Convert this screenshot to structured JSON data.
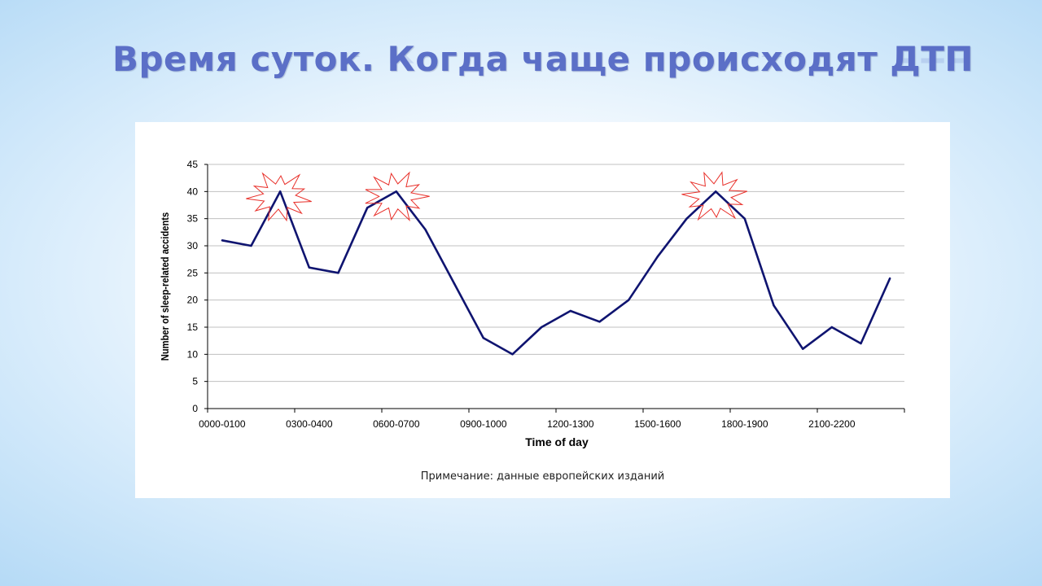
{
  "slide": {
    "title": "Время суток. Когда чаще происходят ДТП",
    "note": "Примечание: данные европейских изданий"
  },
  "colors": {
    "title": "#5b6fc7",
    "line": "#0f1470",
    "burst": "#e8302a",
    "grid": "#c0c0c0"
  },
  "chart_data": {
    "type": "line",
    "xlabel": "Time of day",
    "ylabel": "Number of sleep-related accidents",
    "ylim": [
      0,
      45
    ],
    "yticks": [
      0,
      5,
      10,
      15,
      20,
      25,
      30,
      35,
      40,
      45
    ],
    "grid": true,
    "x_tick_labels": [
      "0000-0100",
      "0300-0400",
      "0600-0700",
      "0900-1000",
      "1200-1300",
      "1500-1600",
      "1800-1900",
      "2100-2200"
    ],
    "x_tick_label_every": 3,
    "n_points": 24,
    "values": [
      31,
      30,
      40,
      26,
      25,
      37,
      40,
      33,
      23,
      13,
      10,
      15,
      18,
      16,
      20,
      28,
      35,
      40,
      35,
      19,
      11,
      15,
      12,
      24
    ],
    "highlighted_peaks": [
      2,
      6,
      17
    ]
  }
}
